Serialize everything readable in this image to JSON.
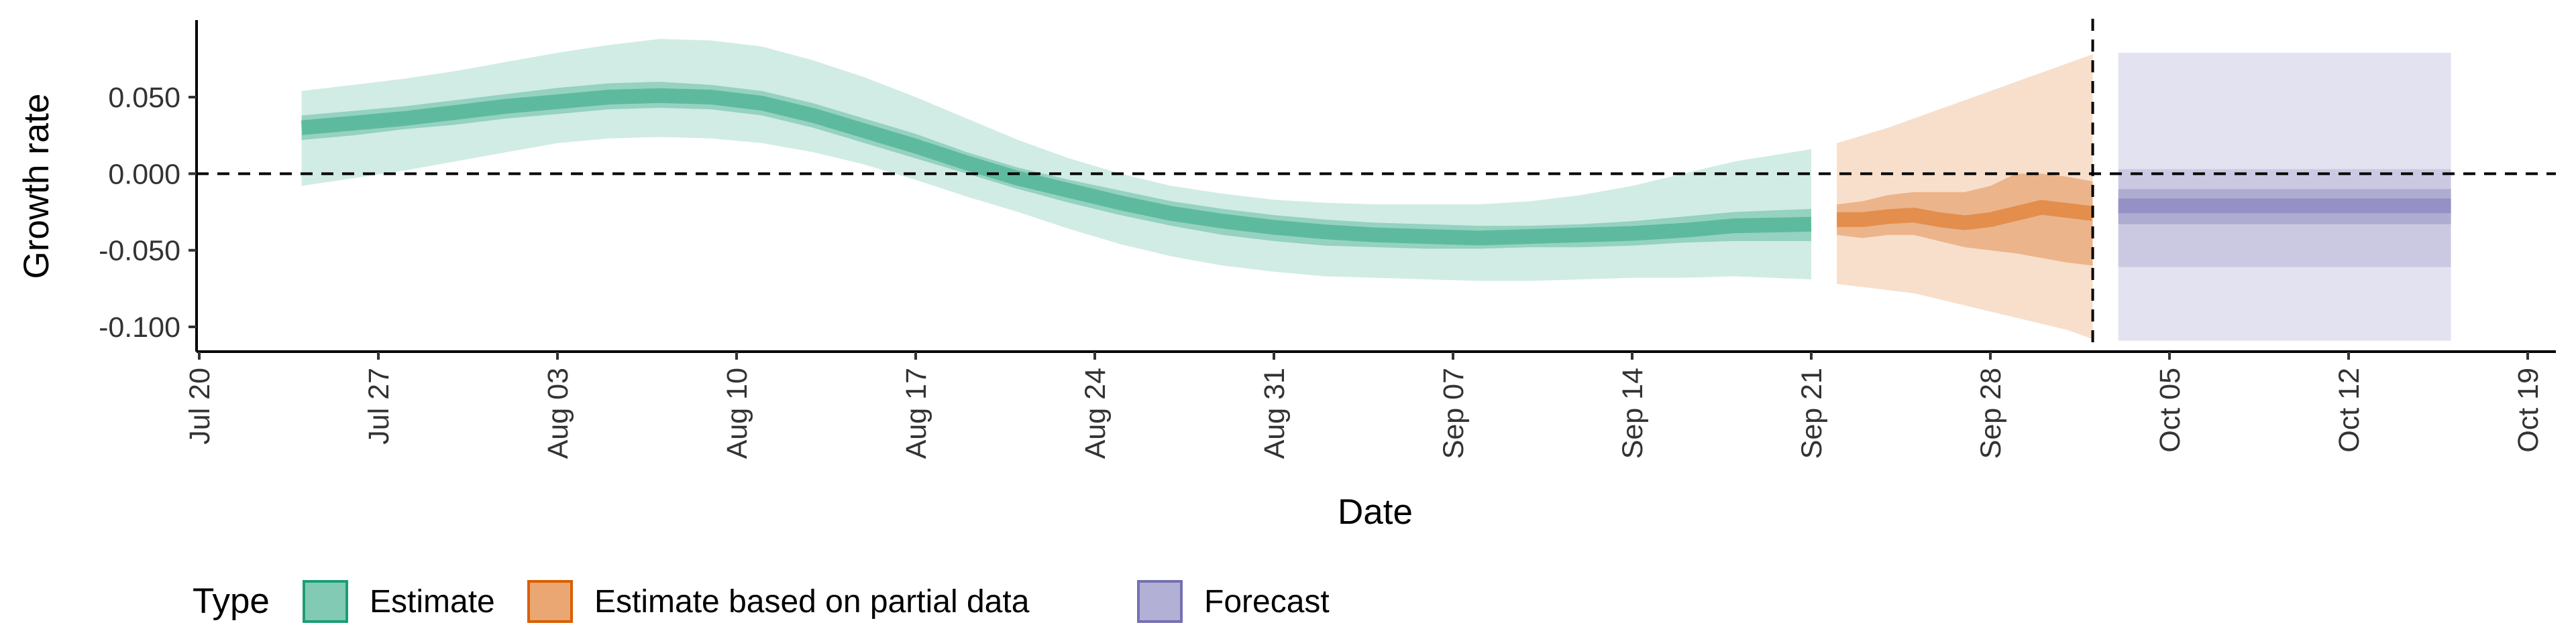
{
  "chart_data": {
    "type": "area",
    "xlabel": "Date",
    "ylabel": "Growth rate",
    "xlim": [
      "2020-07-20",
      "2020-10-19"
    ],
    "ylim": [
      -0.115,
      0.1
    ],
    "x_ticks": [
      "2020-07-20",
      "2020-07-27",
      "2020-08-03",
      "2020-08-10",
      "2020-08-17",
      "2020-08-24",
      "2020-08-31",
      "2020-09-07",
      "2020-09-14",
      "2020-09-21",
      "2020-09-28",
      "2020-10-05",
      "2020-10-12",
      "2020-10-19"
    ],
    "x_tick_labels": [
      "Jul 20",
      "Jul 27",
      "Aug 03",
      "Aug 10",
      "Aug 17",
      "Aug 24",
      "Aug 31",
      "Sep 07",
      "Sep 14",
      "Sep 21",
      "Sep 28",
      "Oct 05",
      "Oct 12",
      "Oct 19"
    ],
    "y_ticks": [
      0.05,
      0.0,
      -0.05,
      -0.1
    ],
    "y_tick_labels": [
      "0.050",
      "0.000",
      "-0.050",
      "-0.100"
    ],
    "reference_lines": [
      {
        "axis": "y",
        "value": 0,
        "style": "dashed"
      },
      {
        "axis": "x",
        "value": "2020-10-02",
        "style": "dashed"
      }
    ],
    "legend": {
      "title": "Type",
      "position": "bottom",
      "items": [
        {
          "label": "Estimate",
          "color": "#1b9e77"
        },
        {
          "label": "Estimate based on partial data",
          "color": "#d95f02"
        },
        {
          "label": "Forecast",
          "color": "#7570b3"
        }
      ]
    },
    "series": [
      {
        "name": "Estimate",
        "color": "#1b9e77",
        "x": [
          "2020-07-24",
          "2020-07-26",
          "2020-07-28",
          "2020-07-30",
          "2020-08-01",
          "2020-08-03",
          "2020-08-05",
          "2020-08-07",
          "2020-08-09",
          "2020-08-11",
          "2020-08-13",
          "2020-08-15",
          "2020-08-17",
          "2020-08-19",
          "2020-08-21",
          "2020-08-23",
          "2020-08-25",
          "2020-08-27",
          "2020-08-29",
          "2020-08-31",
          "2020-09-02",
          "2020-09-04",
          "2020-09-06",
          "2020-09-08",
          "2020-09-10",
          "2020-09-12",
          "2020-09-14",
          "2020-09-16",
          "2020-09-18",
          "2020-09-21"
        ],
        "median": [
          0.03,
          0.033,
          0.036,
          0.04,
          0.044,
          0.047,
          0.05,
          0.051,
          0.05,
          0.046,
          0.038,
          0.028,
          0.018,
          0.007,
          -0.003,
          -0.011,
          -0.019,
          -0.026,
          -0.031,
          -0.035,
          -0.038,
          -0.04,
          -0.041,
          -0.042,
          -0.041,
          -0.04,
          -0.039,
          -0.037,
          -0.034,
          -0.033
        ],
        "lower_50": [
          0.022,
          0.025,
          0.029,
          0.032,
          0.036,
          0.039,
          0.042,
          0.043,
          0.042,
          0.038,
          0.03,
          0.02,
          0.01,
          0.0,
          -0.01,
          -0.019,
          -0.027,
          -0.034,
          -0.04,
          -0.044,
          -0.047,
          -0.048,
          -0.049,
          -0.049,
          -0.048,
          -0.048,
          -0.047,
          -0.045,
          -0.044,
          -0.044
        ],
        "upper_50": [
          0.038,
          0.041,
          0.044,
          0.048,
          0.052,
          0.056,
          0.059,
          0.06,
          0.058,
          0.054,
          0.046,
          0.036,
          0.026,
          0.014,
          0.004,
          -0.004,
          -0.011,
          -0.018,
          -0.023,
          -0.027,
          -0.03,
          -0.032,
          -0.033,
          -0.034,
          -0.034,
          -0.033,
          -0.031,
          -0.028,
          -0.025,
          -0.023
        ],
        "lower_90": [
          -0.008,
          -0.003,
          0.002,
          0.008,
          0.014,
          0.02,
          0.023,
          0.024,
          0.023,
          0.02,
          0.014,
          0.006,
          -0.004,
          -0.015,
          -0.025,
          -0.036,
          -0.046,
          -0.054,
          -0.06,
          -0.064,
          -0.067,
          -0.068,
          -0.069,
          -0.07,
          -0.07,
          -0.069,
          -0.068,
          -0.068,
          -0.067,
          -0.069
        ],
        "upper_90": [
          0.054,
          0.058,
          0.062,
          0.067,
          0.073,
          0.079,
          0.084,
          0.088,
          0.087,
          0.083,
          0.074,
          0.063,
          0.05,
          0.036,
          0.022,
          0.01,
          0.0,
          -0.008,
          -0.013,
          -0.017,
          -0.019,
          -0.02,
          -0.02,
          -0.02,
          -0.018,
          -0.014,
          -0.008,
          0.0,
          0.008,
          0.016
        ]
      },
      {
        "name": "Estimate based on partial data",
        "color": "#d95f02",
        "x": [
          "2020-09-22",
          "2020-09-23",
          "2020-09-24",
          "2020-09-25",
          "2020-09-26",
          "2020-09-27",
          "2020-09-28",
          "2020-09-29",
          "2020-09-30",
          "2020-10-01",
          "2020-10-02"
        ],
        "median": [
          -0.03,
          -0.03,
          -0.028,
          -0.027,
          -0.03,
          -0.032,
          -0.03,
          -0.026,
          -0.022,
          -0.024,
          -0.026
        ],
        "lower_50": [
          -0.04,
          -0.042,
          -0.04,
          -0.04,
          -0.044,
          -0.048,
          -0.05,
          -0.052,
          -0.055,
          -0.058,
          -0.06
        ],
        "upper_50": [
          -0.02,
          -0.018,
          -0.014,
          -0.012,
          -0.012,
          -0.012,
          -0.008,
          0.0,
          0.0,
          -0.002,
          -0.005
        ],
        "lower_90": [
          -0.072,
          -0.074,
          -0.076,
          -0.078,
          -0.082,
          -0.086,
          -0.09,
          -0.094,
          -0.098,
          -0.102,
          -0.108
        ],
        "upper_90": [
          0.02,
          0.025,
          0.03,
          0.036,
          0.042,
          0.048,
          0.054,
          0.06,
          0.066,
          0.072,
          0.078
        ]
      },
      {
        "name": "Forecast",
        "color": "#7570b3",
        "x": [
          "2020-10-03",
          "2020-10-16"
        ],
        "median": [
          -0.021,
          -0.021
        ],
        "lower_50": [
          -0.033,
          -0.033
        ],
        "upper_50": [
          -0.01,
          -0.01
        ],
        "lower_70": [
          -0.061,
          -0.061
        ],
        "upper_70": [
          0.003,
          0.003
        ],
        "lower_90": [
          -0.109,
          -0.109
        ],
        "upper_90": [
          0.079,
          0.079
        ]
      }
    ]
  }
}
